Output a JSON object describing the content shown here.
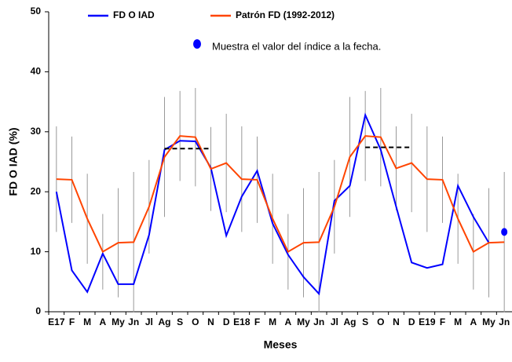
{
  "chart_data": {
    "type": "line",
    "y_label": "FD O IAD (%)",
    "x_label": "Meses",
    "categories": [
      "E17",
      "F",
      "M",
      "A",
      "My",
      "Jn",
      "Jl",
      "Ag",
      "S",
      "O",
      "N",
      "D",
      "E18",
      "F",
      "M",
      "A",
      "My",
      "Jn",
      "Jl",
      "Ag",
      "S",
      "O",
      "N",
      "D",
      "E19",
      "F",
      "M",
      "A",
      "My",
      "Jn"
    ],
    "ylim": [
      0,
      50
    ],
    "yticks": [
      0,
      10,
      20,
      30,
      40,
      50
    ],
    "grid": false,
    "series": [
      {
        "name": "FD O IAD",
        "color": "#0000ff",
        "values": [
          20,
          6.9,
          3.3,
          9.7,
          4.6,
          4.6,
          12.8,
          27,
          28.5,
          28.4,
          24,
          12.7,
          19.2,
          23.5,
          14.7,
          9.5,
          5.8,
          3,
          18.5,
          21,
          32.8,
          27,
          17.5,
          8.2,
          7.3,
          7.9,
          21,
          15.8,
          11.5,
          null
        ]
      },
      {
        "name": "Patrón FD (1992-2012)",
        "color": "#ff4500",
        "values": [
          22.1,
          22,
          15.5,
          10,
          11.5,
          11.6,
          17.5,
          25.8,
          29.3,
          29.1,
          23.8,
          24.8,
          22.1,
          22,
          15.5,
          10,
          11.5,
          11.6,
          17.5,
          25.8,
          29.3,
          29.1,
          23.9,
          24.8,
          22.1,
          22,
          15.5,
          10,
          11.5,
          11.6
        ],
        "errors": [
          8.8,
          7.2,
          7.5,
          6.3,
          9.1,
          11.7,
          7.8,
          10,
          7.5,
          8.2,
          7,
          8.2,
          8.8,
          7.2,
          7.5,
          6.3,
          9.1,
          11.7,
          7.8,
          10,
          7.5,
          8.2,
          7,
          8.2,
          8.8,
          7.2,
          7.5,
          6.3,
          9.1,
          11.7
        ],
        "error_color": "#999999"
      },
      {
        "name": "Muestra el valor del índice a la fecha.",
        "color": "#0000ff",
        "marker_only": true,
        "values": [
          null,
          null,
          null,
          null,
          null,
          null,
          null,
          null,
          null,
          null,
          null,
          null,
          null,
          null,
          null,
          null,
          null,
          null,
          null,
          null,
          null,
          null,
          null,
          null,
          null,
          null,
          null,
          null,
          null,
          13.3
        ]
      },
      {
        "color": "#000000",
        "dashed": true,
        "values": [
          null,
          null,
          null,
          null,
          null,
          null,
          null,
          27.2,
          27.2,
          27.2,
          27.2,
          null,
          null,
          null,
          null,
          null,
          null,
          null,
          null,
          null,
          27.4,
          27.4,
          27.4,
          27.4,
          null,
          null,
          null,
          null,
          null,
          null
        ]
      }
    ]
  }
}
